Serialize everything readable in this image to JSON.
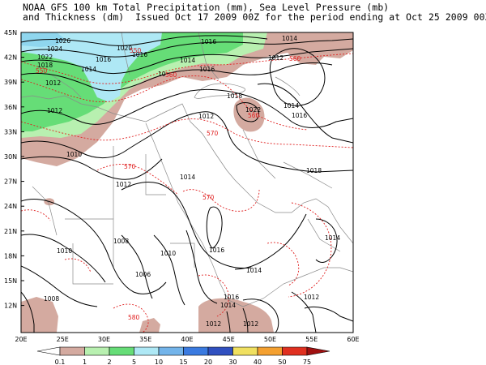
{
  "title": {
    "line1": "NOAA GFS 100 km Total Precipitation (mm), Sea Level Pressure (mb)",
    "line2": "and Thickness (dm)  Issued Oct 17 2009 00Z for the period ending at Oct 25 2009 00Z"
  },
  "axes": {
    "lat_labels": [
      "45N",
      "42N",
      "39N",
      "36N",
      "33N",
      "30N",
      "27N",
      "24N",
      "21N",
      "18N",
      "15N",
      "12N"
    ],
    "lon_labels": [
      "20E",
      "25E",
      "30E",
      "35E",
      "40E",
      "45E",
      "50E",
      "55E",
      "60E"
    ]
  },
  "pressure_labels": [
    "1026",
    "1024",
    "1022",
    "1018",
    "1020",
    "1016",
    "1014",
    "1012",
    "1010",
    "1008",
    "1006",
    "1022",
    "1018",
    "1016",
    "1016",
    "1014",
    "1014",
    "1016",
    "1014",
    "1012",
    "1016",
    "1012",
    "1014",
    "1016",
    "1014",
    "1012",
    "1012",
    "1014",
    "1016",
    "1018",
    "1014",
    "1008",
    "1010",
    "1012",
    "1012",
    "1014",
    "1016",
    "10"
  ],
  "thickness_labels": [
    "550",
    "550",
    "560",
    "560",
    "560",
    "570",
    "570",
    "570",
    "580"
  ],
  "colorbar": {
    "labels": [
      "0.1",
      "1",
      "2",
      "5",
      "10",
      "15",
      "20",
      "30",
      "40",
      "50",
      "75"
    ],
    "colors": [
      "#d4aaa0",
      "#b8f0b0",
      "#66dd77",
      "#aee8f5",
      "#73b4ea",
      "#3a7ae0",
      "#3050c0",
      "#f0e060",
      "#f4a030",
      "#e03020",
      "#a01010"
    ]
  },
  "colors": {
    "land_light_precip": "#d4aaa0",
    "precip_1mm": "#b8f0b0",
    "precip_2mm": "#66dd77",
    "precip_5mm": "#aee8f5",
    "pressure_contour": "#000000",
    "thickness_contour": "#e02020"
  }
}
